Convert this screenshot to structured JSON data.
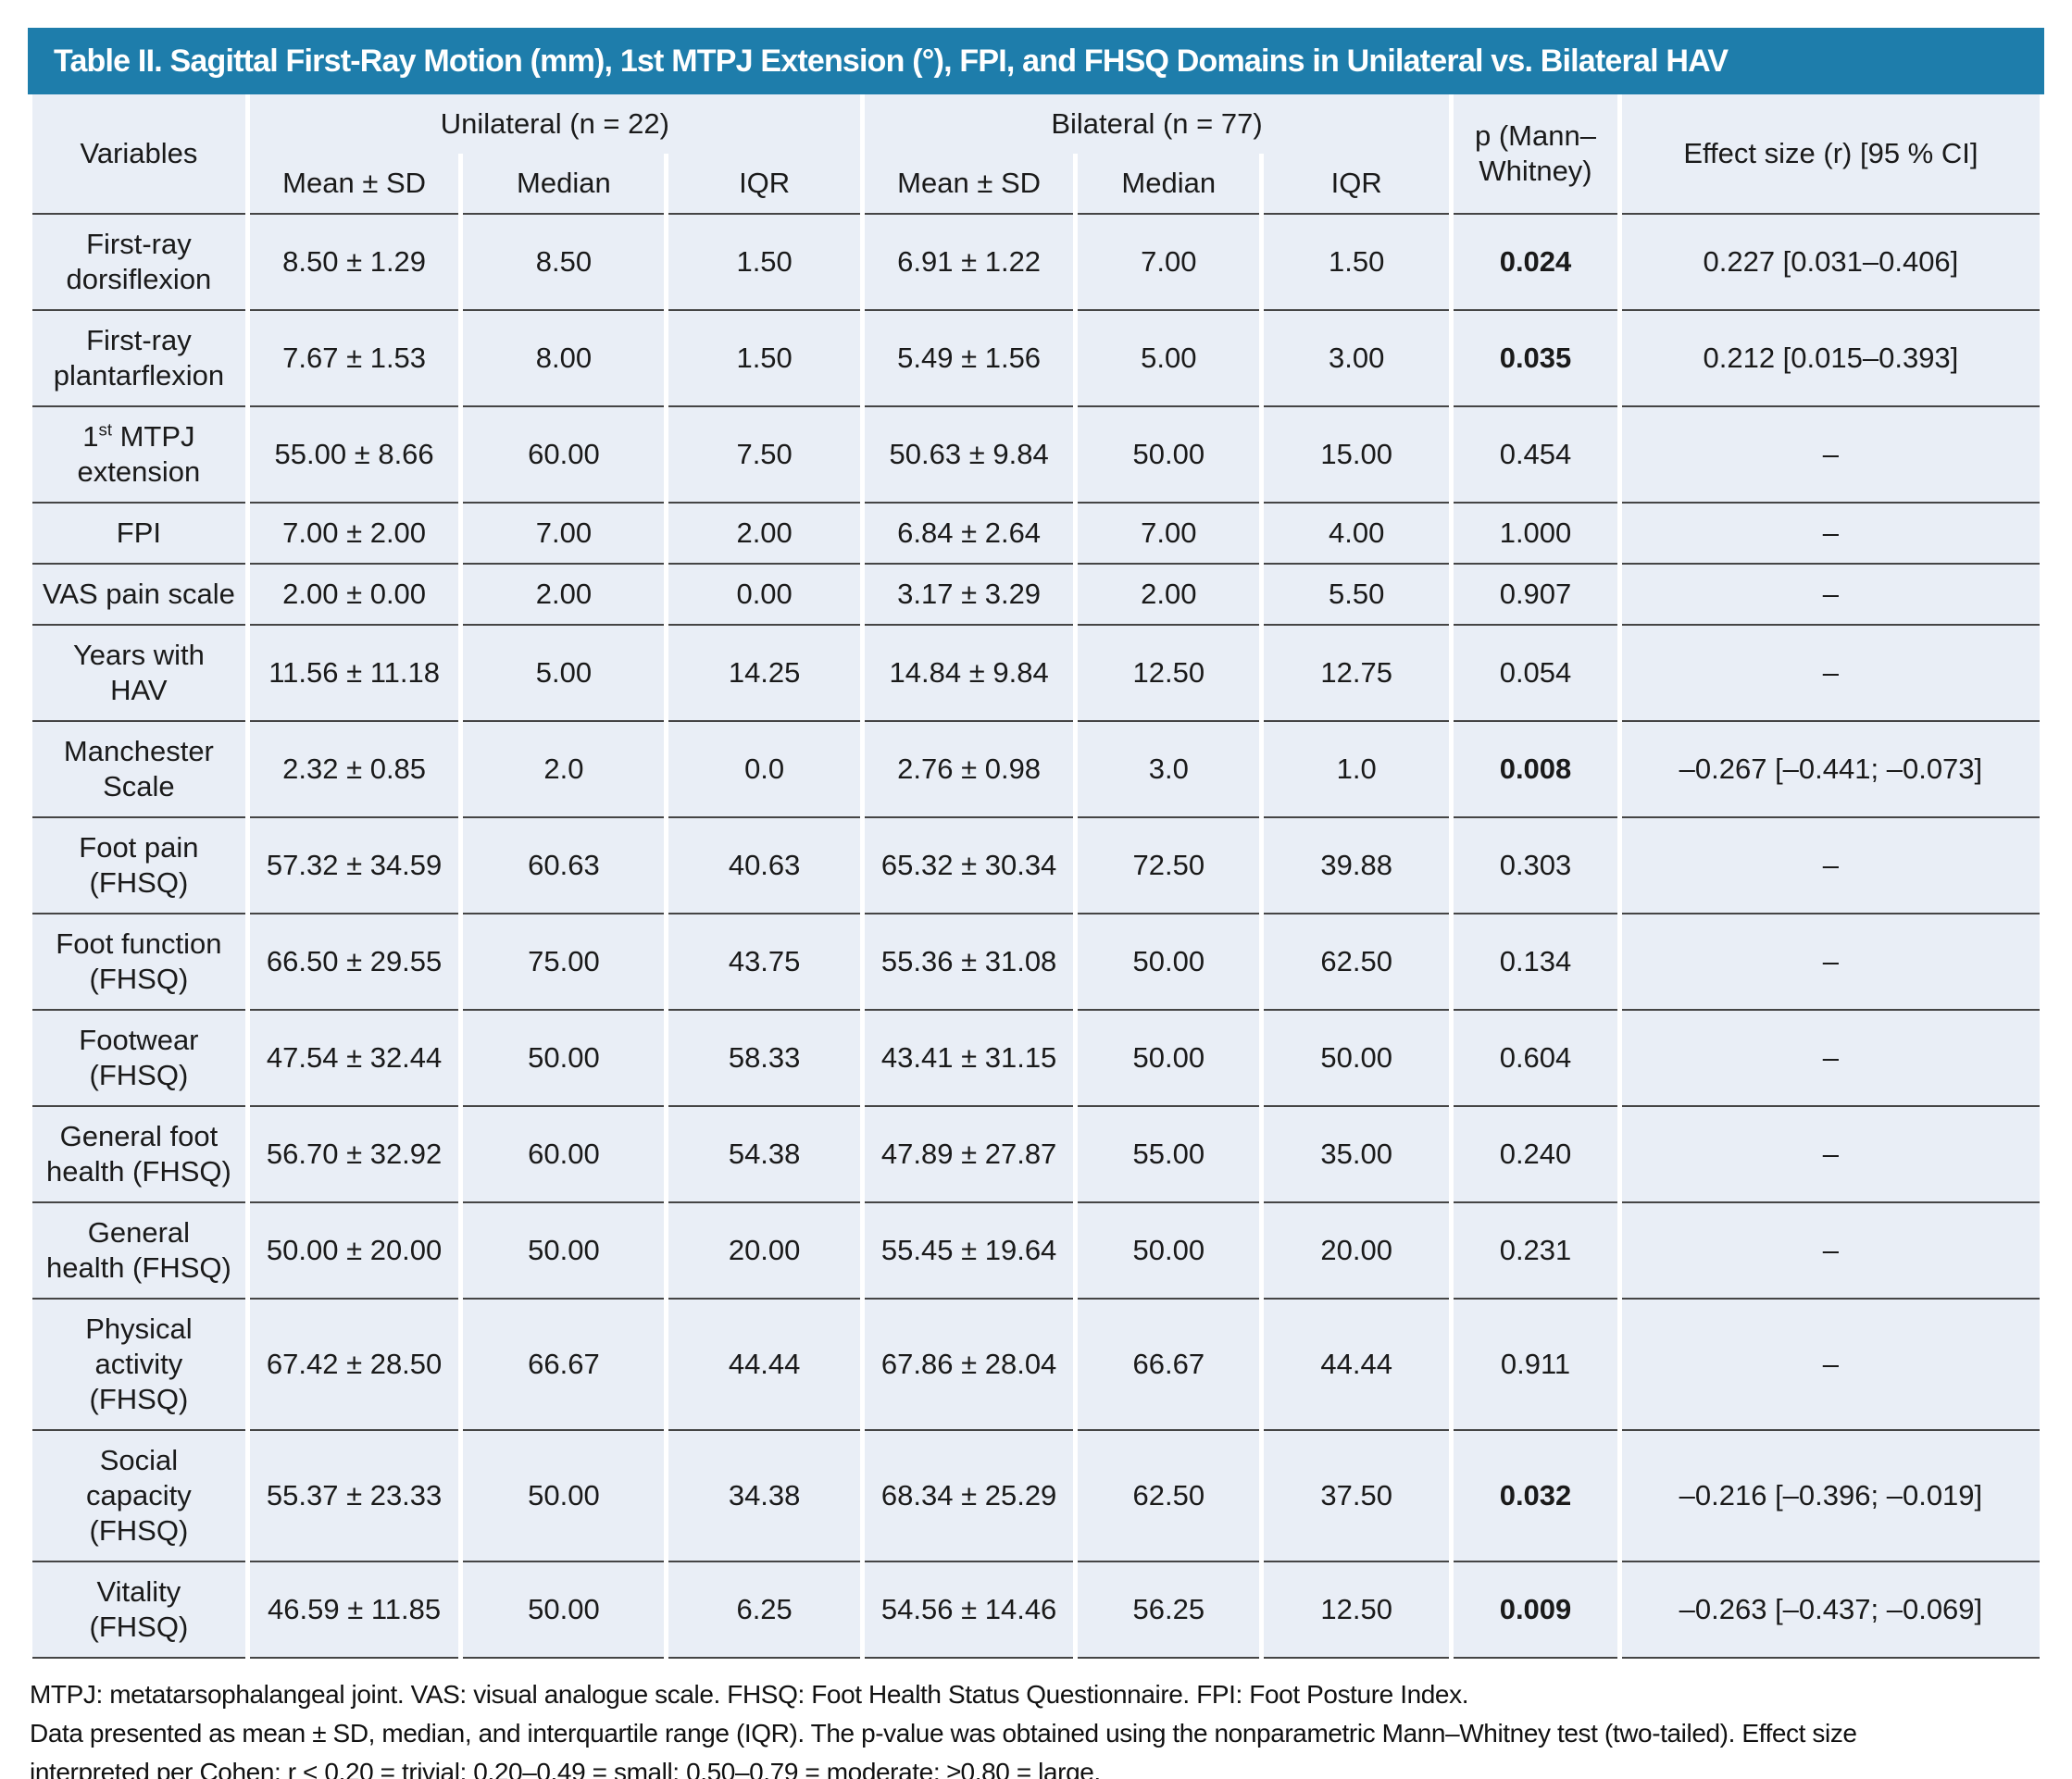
{
  "title": "Table II. Sagittal First-Ray Motion (mm), 1st MTPJ Extension (°), FPI, and FHSQ Domains in Unilateral vs. Bilateral HAV",
  "colors": {
    "header_bg": "#1e7dab",
    "row_bg": "#e9eef6",
    "line": "#454545",
    "title_text": "#ffffff"
  },
  "table": {
    "col_headers": {
      "variables": "Variables",
      "group_unilateral": "Unilateral (n = 22)",
      "group_bilateral": "Bilateral (n = 77)",
      "sub": [
        "Mean ± SD",
        "Median",
        "IQR",
        "Mean ± SD",
        "Median",
        "IQR"
      ],
      "p": "p (Mann–\nWhitney)",
      "effect": "Effect size (r) [95 % CI]"
    },
    "rows": [
      {
        "variable": "First-ray\ndorsiflexion",
        "u_mean_sd": "8.50 ± 1.29",
        "u_median": "8.50",
        "u_iqr": "1.50",
        "b_mean_sd": "6.91 ± 1.22",
        "b_median": "7.00",
        "b_iqr": "1.50",
        "p": "0.024",
        "p_bold": true,
        "effect": "0.227 [0.031–0.406]"
      },
      {
        "variable": "First-ray\nplantarflexion",
        "u_mean_sd": "7.67 ± 1.53",
        "u_median": "8.00",
        "u_iqr": "1.50",
        "b_mean_sd": "5.49 ± 1.56",
        "b_median": "5.00",
        "b_iqr": "3.00",
        "p": "0.035",
        "p_bold": true,
        "effect": "0.212 [0.015–0.393]"
      },
      {
        "variable_parts": [
          {
            "text": "1"
          },
          {
            "text": "st",
            "sup": true
          },
          {
            "text": " MTPJ\nextension"
          }
        ],
        "u_mean_sd": "55.00 ± 8.66",
        "u_median": "60.00",
        "u_iqr": "7.50",
        "b_mean_sd": "50.63 ± 9.84",
        "b_median": "50.00",
        "b_iqr": "15.00",
        "p": "0.454",
        "p_bold": false,
        "effect": "–"
      },
      {
        "variable": "FPI",
        "u_mean_sd": "7.00 ± 2.00",
        "u_median": "7.00",
        "u_iqr": "2.00",
        "b_mean_sd": "6.84 ± 2.64",
        "b_median": "7.00",
        "b_iqr": "4.00",
        "p": "1.000",
        "p_bold": false,
        "effect": "–"
      },
      {
        "variable": "VAS pain scale",
        "u_mean_sd": "2.00 ± 0.00",
        "u_median": "2.00",
        "u_iqr": "0.00",
        "b_mean_sd": "3.17 ± 3.29",
        "b_median": "2.00",
        "b_iqr": "5.50",
        "p": "0.907",
        "p_bold": false,
        "effect": "–"
      },
      {
        "variable": "Years with\nHAV",
        "u_mean_sd": "11.56 ± 11.18",
        "u_median": "5.00",
        "u_iqr": "14.25",
        "b_mean_sd": "14.84 ± 9.84",
        "b_median": "12.50",
        "b_iqr": "12.75",
        "p": "0.054",
        "p_bold": false,
        "effect": "–"
      },
      {
        "variable": "Manchester\nScale",
        "u_mean_sd": "2.32 ± 0.85",
        "u_median": "2.0",
        "u_iqr": "0.0",
        "b_mean_sd": "2.76 ± 0.98",
        "b_median": "3.0",
        "b_iqr": "1.0",
        "p": "0.008",
        "p_bold": true,
        "effect": "–0.267 [–0.441; –0.073]"
      },
      {
        "variable": "Foot pain\n(FHSQ)",
        "u_mean_sd": "57.32 ± 34.59",
        "u_median": "60.63",
        "u_iqr": "40.63",
        "b_mean_sd": "65.32 ± 30.34",
        "b_median": "72.50",
        "b_iqr": "39.88",
        "p": "0.303",
        "p_bold": false,
        "effect": "–"
      },
      {
        "variable": "Foot function\n(FHSQ)",
        "u_mean_sd": "66.50 ± 29.55",
        "u_median": "75.00",
        "u_iqr": "43.75",
        "b_mean_sd": "55.36 ± 31.08",
        "b_median": "50.00",
        "b_iqr": "62.50",
        "p": "0.134",
        "p_bold": false,
        "effect": "–"
      },
      {
        "variable": "Footwear\n(FHSQ)",
        "u_mean_sd": "47.54 ± 32.44",
        "u_median": "50.00",
        "u_iqr": "58.33",
        "b_mean_sd": "43.41 ± 31.15",
        "b_median": "50.00",
        "b_iqr": "50.00",
        "p": "0.604",
        "p_bold": false,
        "effect": "–"
      },
      {
        "variable": "General foot\nhealth (FHSQ)",
        "u_mean_sd": "56.70 ± 32.92",
        "u_median": "60.00",
        "u_iqr": "54.38",
        "b_mean_sd": "47.89 ± 27.87",
        "b_median": "55.00",
        "b_iqr": "35.00",
        "p": "0.240",
        "p_bold": false,
        "effect": "–"
      },
      {
        "variable": "General\nhealth (FHSQ)",
        "u_mean_sd": "50.00 ± 20.00",
        "u_median": "50.00",
        "u_iqr": "20.00",
        "b_mean_sd": "55.45 ± 19.64",
        "b_median": "50.00",
        "b_iqr": "20.00",
        "p": "0.231",
        "p_bold": false,
        "effect": "–"
      },
      {
        "variable": "Physical\nactivity\n(FHSQ)",
        "u_mean_sd": "67.42 ± 28.50",
        "u_median": "66.67",
        "u_iqr": "44.44",
        "b_mean_sd": "67.86 ± 28.04",
        "b_median": "66.67",
        "b_iqr": "44.44",
        "p": "0.911",
        "p_bold": false,
        "effect": "–"
      },
      {
        "variable": "Social\ncapacity\n(FHSQ)",
        "u_mean_sd": "55.37 ± 23.33",
        "u_median": "50.00",
        "u_iqr": "34.38",
        "b_mean_sd": "68.34 ± 25.29",
        "b_median": "62.50",
        "b_iqr": "37.50",
        "p": "0.032",
        "p_bold": true,
        "effect": "–0.216 [–0.396; –0.019]"
      },
      {
        "variable": "Vitality\n(FHSQ)",
        "u_mean_sd": "46.59 ± 11.85",
        "u_median": "50.00",
        "u_iqr": "6.25",
        "b_mean_sd": "54.56 ± 14.46",
        "b_median": "56.25",
        "b_iqr": "12.50",
        "p": "0.009",
        "p_bold": true,
        "effect": "–0.263 [–0.437; –0.069]"
      }
    ]
  },
  "footnotes": [
    "MTPJ: metatarsophalangeal joint. VAS: visual analogue scale. FHSQ: Foot Health Status Questionnaire. FPI: Foot Posture Index.",
    "Data presented as mean ± SD, median, and interquartile range (IQR). The p-value was obtained using the nonparametric Mann–Whitney test (two-tailed). Effect size",
    "interpreted per Cohen: r < 0.20 = trivial; 0.20–0.49 = small; 0.50–0.79 = moderate; ≥0.80 = large."
  ]
}
